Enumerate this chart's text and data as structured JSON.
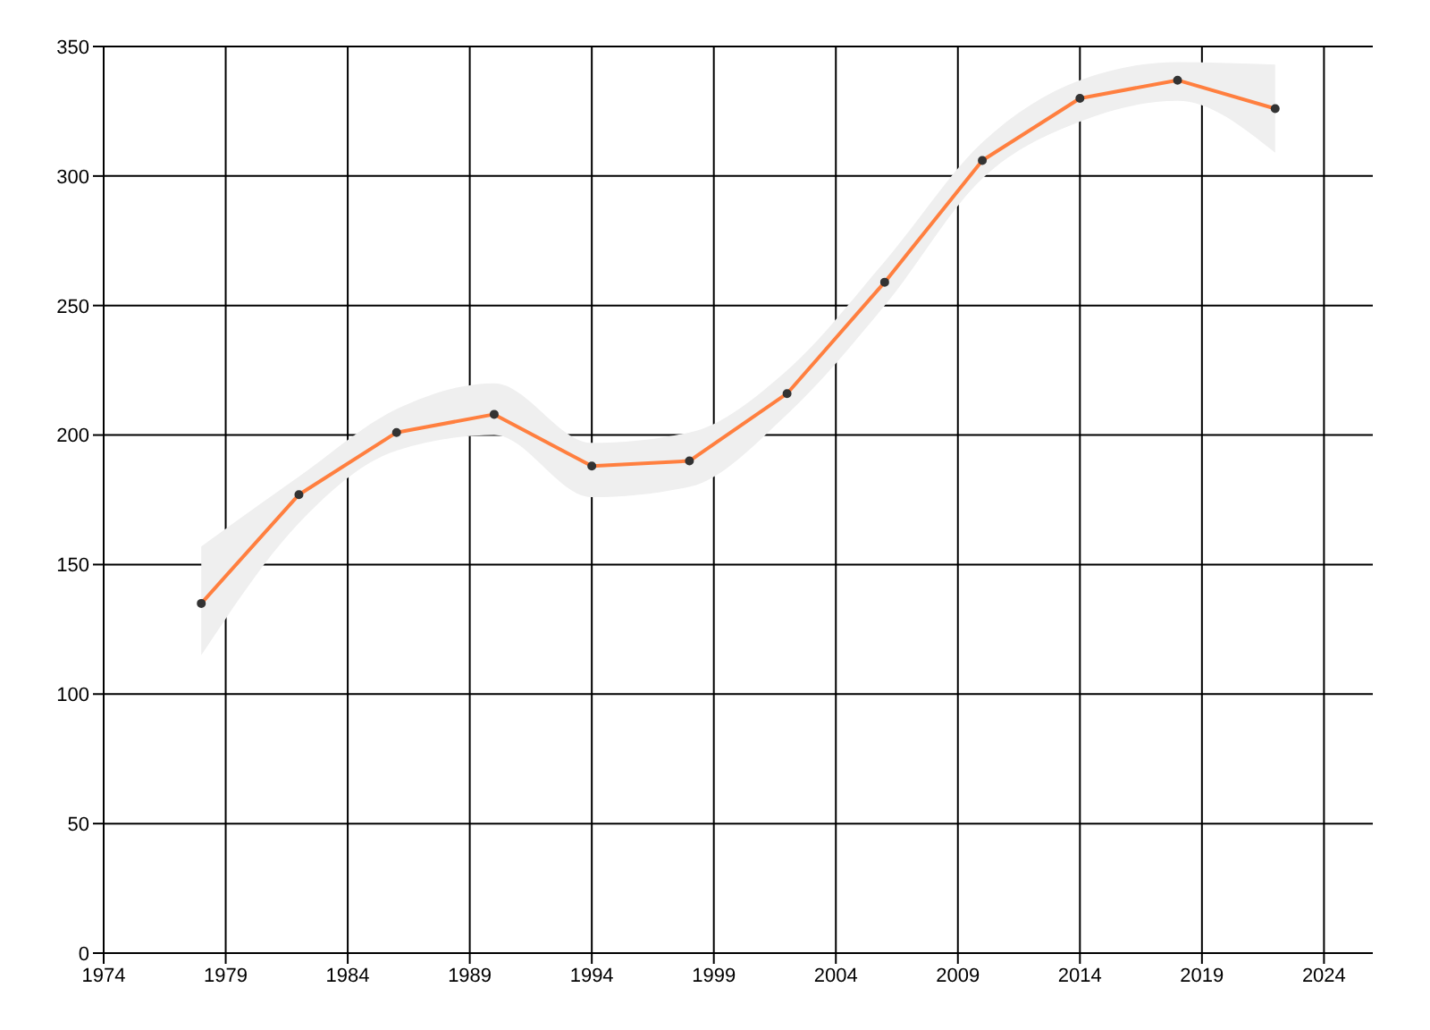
{
  "chart_data": {
    "type": "line",
    "x": [
      1978,
      1982,
      1986,
      1990,
      1994,
      1998,
      2002,
      2006,
      2010,
      2014,
      2018,
      2022
    ],
    "series": [
      {
        "color": "#ff7f3f",
        "values": [
          135,
          177,
          201,
          208,
          188,
          190,
          216,
          259,
          306,
          330,
          337,
          326
        ],
        "lower": [
          115,
          166,
          194,
          200,
          176,
          180,
          208,
          250,
          299,
          321,
          329,
          309
        ],
        "upper": [
          157,
          184,
          210,
          220,
          197,
          201,
          225,
          267,
          313,
          337,
          344,
          343
        ]
      }
    ],
    "xlim": [
      1974,
      2026
    ],
    "xticks": [
      1974,
      1979,
      1984,
      1989,
      1994,
      1999,
      2004,
      2009,
      2014,
      2019,
      2024
    ],
    "ylim": [
      0,
      350
    ],
    "yticks": [
      0,
      50,
      100,
      150,
      200,
      250,
      300,
      350
    ],
    "grid": true,
    "marker": "circle",
    "line_style": "solid"
  }
}
